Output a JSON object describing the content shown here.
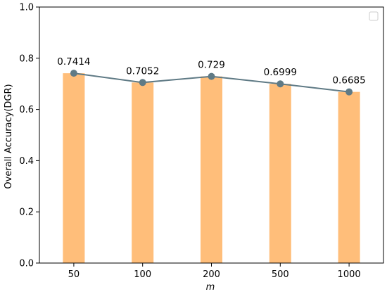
{
  "chart_data": {
    "type": "bar",
    "categories": [
      "50",
      "100",
      "200",
      "500",
      "1000"
    ],
    "values": [
      0.7414,
      0.7052,
      0.729,
      0.6999,
      0.6685
    ],
    "data_labels": [
      "0.7414",
      "0.7052",
      "0.729",
      "0.6999",
      "0.6685"
    ],
    "overlay_line": true,
    "xlabel": "m",
    "ylabel": "Overall Accuracy(DGR)",
    "ylim": [
      0,
      1.0
    ],
    "yticks": [
      0.0,
      0.2,
      0.4,
      0.6,
      0.8,
      1.0
    ],
    "ytick_labels": [
      "0.0",
      "0.2",
      "0.4",
      "0.6",
      "0.8",
      "1.0"
    ],
    "legend_placement": "top-right",
    "legend_entries": [],
    "grid": false,
    "colors": {
      "bar": "#ffbe7a",
      "line": "#5f7a85",
      "marker": "#5f7a85"
    }
  }
}
